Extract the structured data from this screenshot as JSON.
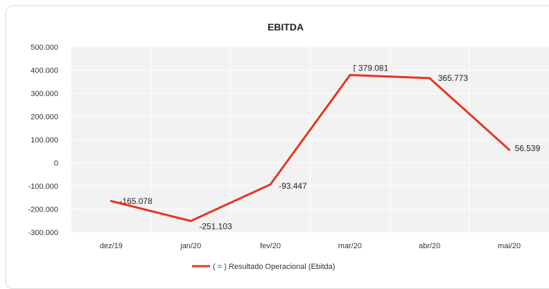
{
  "chart_data": {
    "type": "line",
    "title": "EBITDA",
    "categories": [
      "dez/19",
      "jan/20",
      "fev/20",
      "mar/20",
      "abr/20",
      "mai/20"
    ],
    "series": [
      {
        "name": "( = ) Resultado Operacional (Ebitda)",
        "values": [
          -165078,
          -251103,
          -93447,
          379081,
          365773,
          56539
        ],
        "labels": [
          "-165.078",
          "-251.103",
          "-93.447",
          "379.081",
          "365.773",
          "56.539"
        ],
        "color": "#e8321e"
      }
    ],
    "yticks": [
      "500.000",
      "400.000",
      "300.000",
      "200.000",
      "100.000",
      "0",
      "-100.000",
      "-200.000",
      "-300.000"
    ],
    "ytick_values": [
      500000,
      400000,
      300000,
      200000,
      100000,
      0,
      -100000,
      -200000,
      -300000
    ],
    "ylim": [
      -300000,
      500000
    ],
    "grid": true,
    "legend": "bottom",
    "plot_background": "#f2f2f2"
  }
}
